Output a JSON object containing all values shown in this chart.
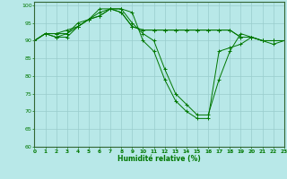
{
  "xlabel": "Humidité relative (%)",
  "background_color": "#b8e8e8",
  "grid_color": "#99cccc",
  "line_color": "#007700",
  "xlim": [
    0,
    23
  ],
  "ylim": [
    60,
    101
  ],
  "yticks": [
    60,
    65,
    70,
    75,
    80,
    85,
    90,
    95,
    100
  ],
  "xticks": [
    0,
    1,
    2,
    3,
    4,
    5,
    6,
    7,
    8,
    9,
    10,
    11,
    12,
    13,
    14,
    15,
    16,
    17,
    18,
    19,
    20,
    21,
    22,
    23
  ],
  "series": [
    [
      90,
      92,
      91,
      91,
      94,
      96,
      99,
      99,
      99,
      98,
      90,
      87,
      79,
      73,
      70,
      68,
      68,
      87,
      88,
      89,
      91,
      90,
      89,
      90
    ],
    [
      90,
      92,
      92,
      92,
      95,
      96,
      98,
      99,
      99,
      95,
      92,
      90,
      82,
      75,
      72,
      69,
      69,
      79,
      87,
      92,
      91,
      90,
      90,
      90
    ],
    [
      90,
      92,
      91,
      92,
      94,
      96,
      97,
      99,
      98,
      94,
      93,
      93,
      93,
      93,
      93,
      93,
      93,
      93,
      93,
      91,
      91,
      90,
      90,
      90
    ],
    [
      90,
      92,
      92,
      93,
      94,
      96,
      97,
      99,
      98,
      94,
      93,
      93,
      93,
      93,
      93,
      93,
      93,
      93,
      93,
      91,
      91,
      90,
      90,
      90
    ]
  ]
}
